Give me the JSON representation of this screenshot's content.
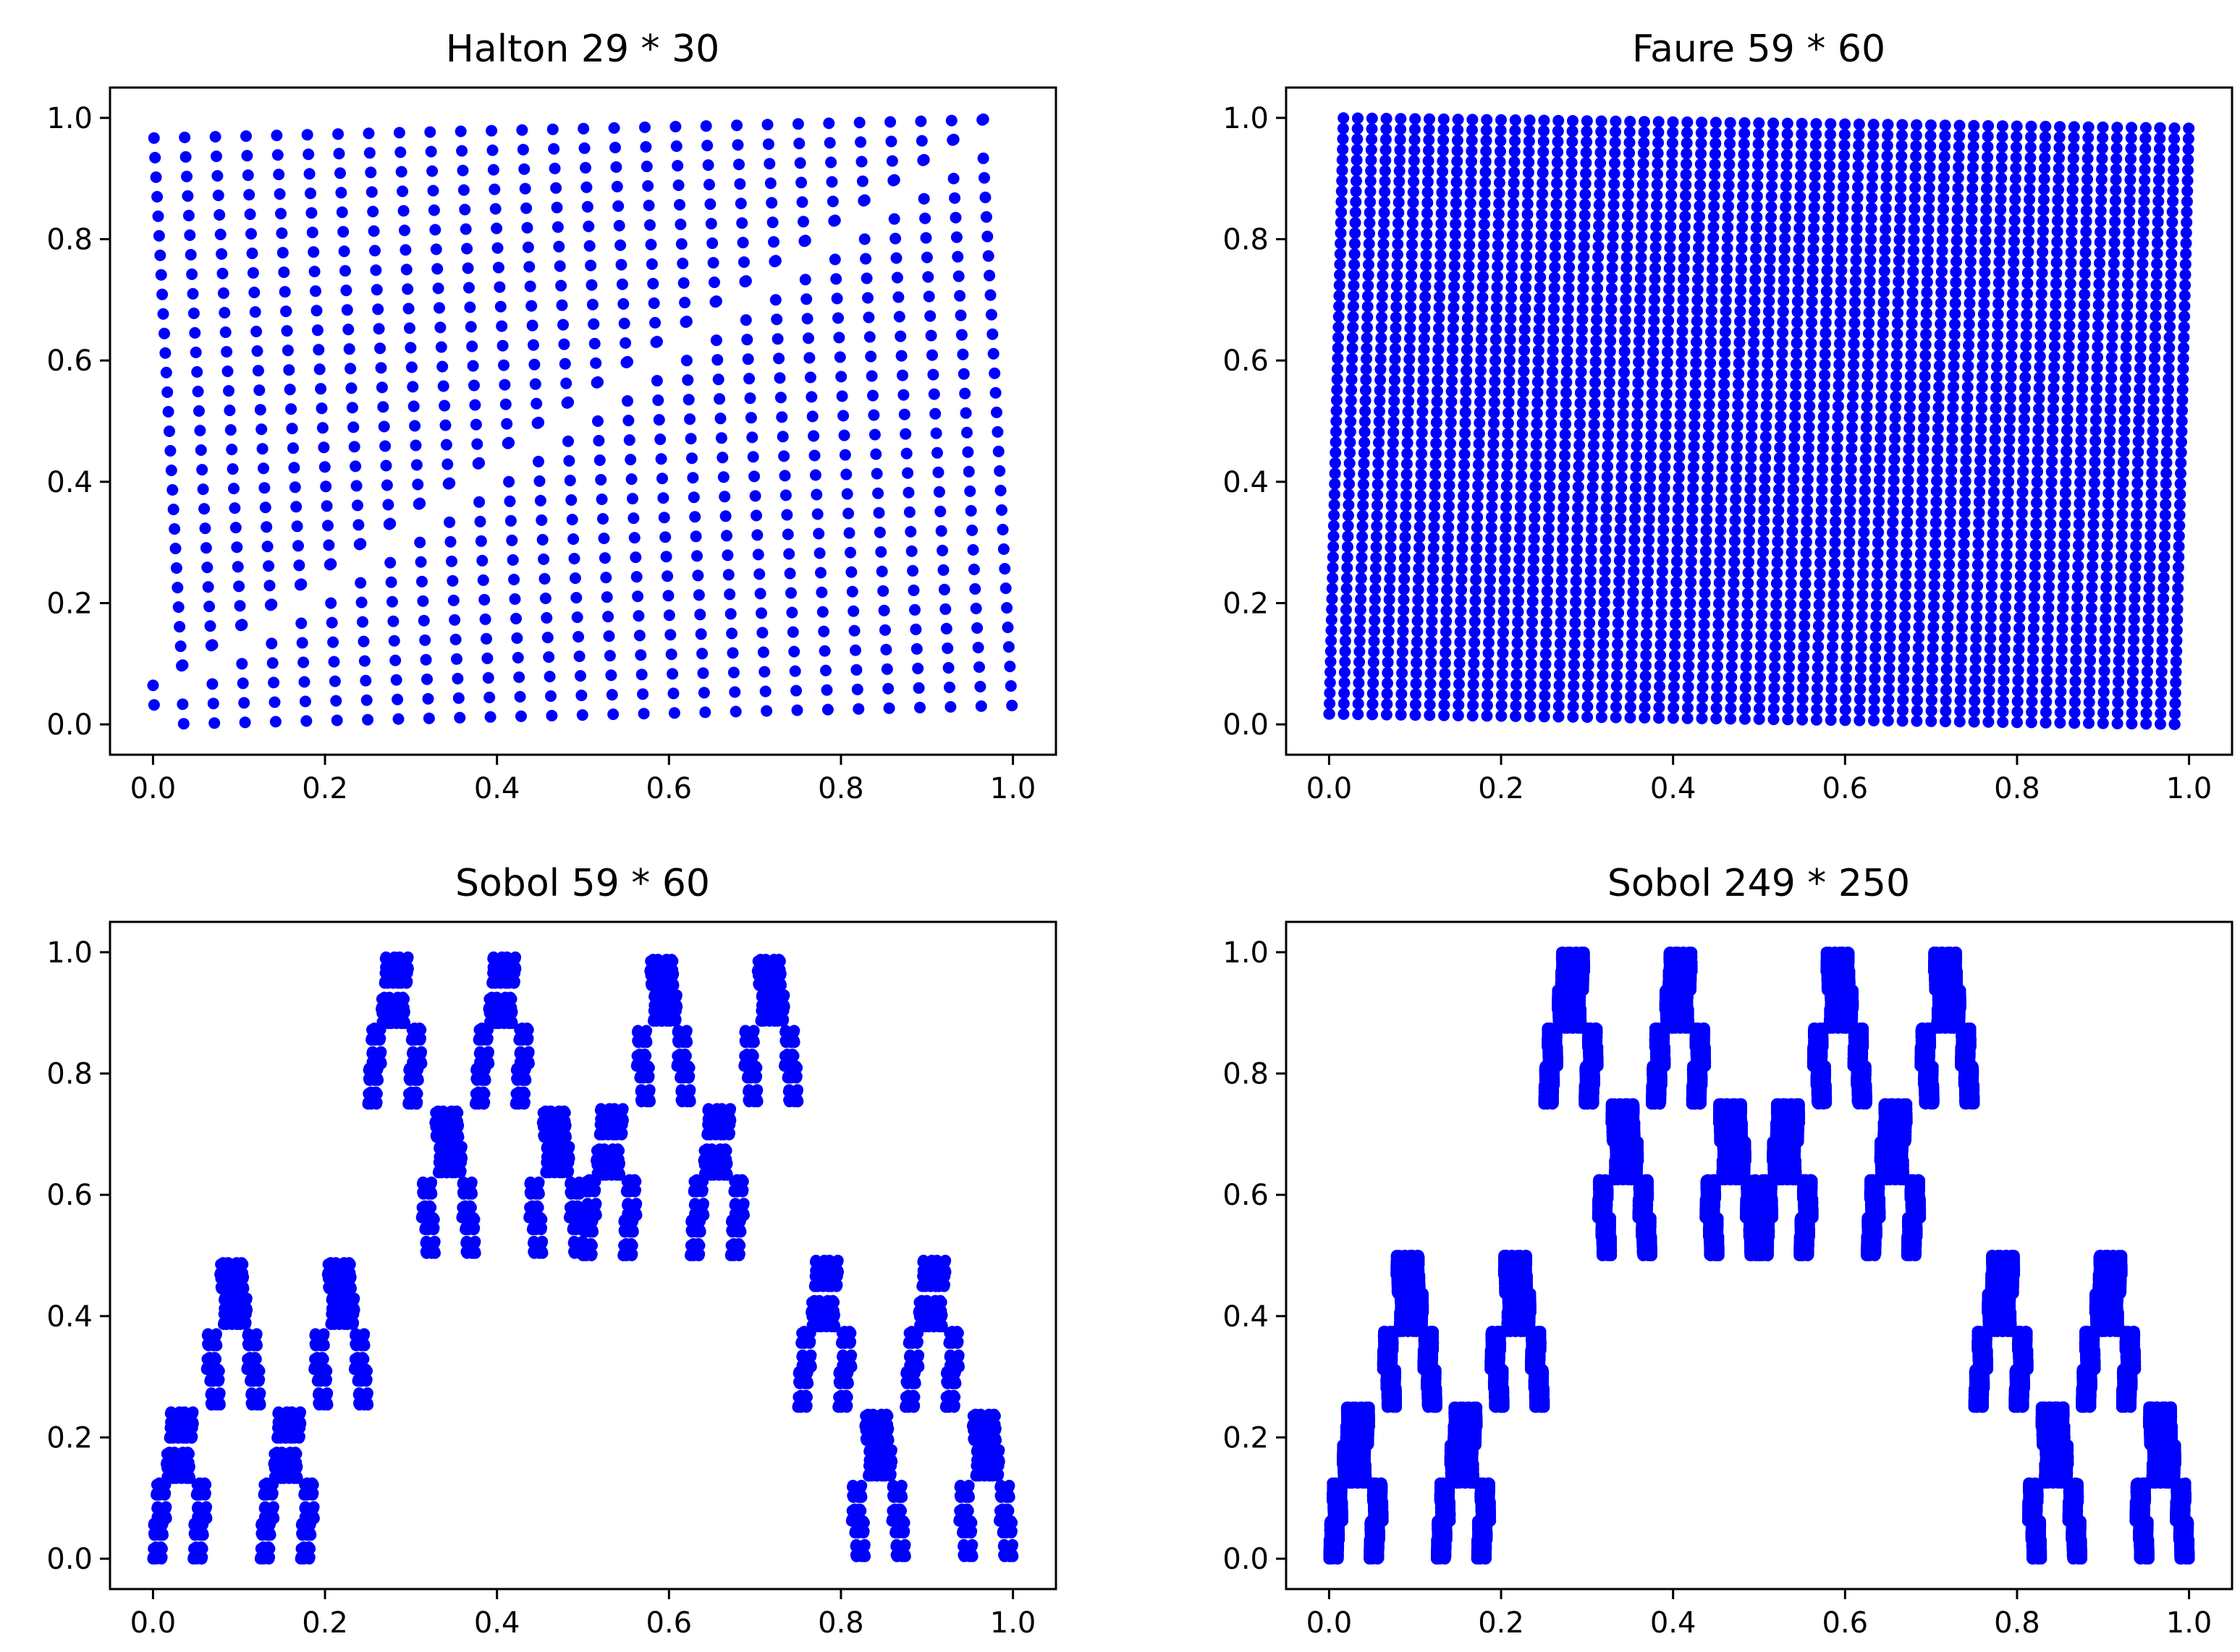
{
  "colors": {
    "marker": "#0000ff",
    "axes": "#000000",
    "background": "#ffffff"
  },
  "chart_data": [
    {
      "type": "scatter",
      "title": "Halton 29 * 30",
      "generator": "halton",
      "params": {
        "bases": [
          29,
          30
        ],
        "n": 870
      },
      "xlim": [
        -0.05,
        1.05
      ],
      "ylim": [
        -0.05,
        1.05
      ],
      "xticks": [
        "0.0",
        "0.2",
        "0.4",
        "0.6",
        "0.8",
        "1.0"
      ],
      "yticks": [
        "0.0",
        "0.2",
        "0.4",
        "0.6",
        "0.8",
        "1.0"
      ],
      "grid": false
    },
    {
      "type": "scatter",
      "title": "Faure 59 * 60",
      "generator": "faure",
      "params": {
        "base": 59,
        "n": 3540
      },
      "xlim": [
        -0.05,
        1.05
      ],
      "ylim": [
        -0.05,
        1.05
      ],
      "xticks": [
        "0.0",
        "0.2",
        "0.4",
        "0.6",
        "0.8",
        "1.0"
      ],
      "yticks": [
        "0.0",
        "0.2",
        "0.4",
        "0.6",
        "0.8",
        "1.0"
      ],
      "grid": false
    },
    {
      "type": "scatter",
      "title": "Sobol 59 * 60",
      "generator": "sobol",
      "params": {
        "n": 3540
      },
      "xlim": [
        -0.05,
        1.05
      ],
      "ylim": [
        -0.05,
        1.05
      ],
      "xticks": [
        "0.0",
        "0.2",
        "0.4",
        "0.6",
        "0.8",
        "1.0"
      ],
      "yticks": [
        "0.0",
        "0.2",
        "0.4",
        "0.6",
        "0.8",
        "1.0"
      ],
      "grid": false
    },
    {
      "type": "scatter",
      "title": "Sobol 249 * 250",
      "generator": "sobol",
      "params": {
        "n": 62250
      },
      "xlim": [
        -0.05,
        1.05
      ],
      "ylim": [
        -0.05,
        1.05
      ],
      "xticks": [
        "0.0",
        "0.2",
        "0.4",
        "0.6",
        "0.8",
        "1.0"
      ],
      "yticks": [
        "0.0",
        "0.2",
        "0.4",
        "0.6",
        "0.8",
        "1.0"
      ],
      "grid": false
    }
  ]
}
